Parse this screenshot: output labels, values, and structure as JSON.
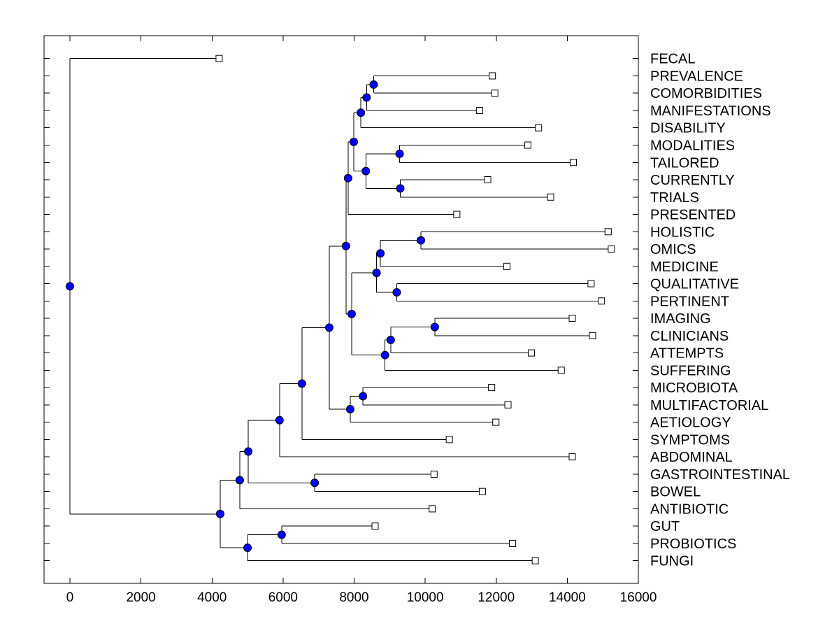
{
  "figure": {
    "background": "#ffffff",
    "text_color": "#000000",
    "line_color": "#000000",
    "internal_node_marker": {
      "shape": "circle",
      "fill": "#0000ff",
      "stroke": "#000000"
    },
    "leaf_marker": {
      "shape": "square",
      "fill": "#ffffff",
      "stroke": "#000000"
    }
  },
  "chart_data": {
    "type": "dendrogram",
    "subtype": "phylogenetic-tree",
    "orientation": "left-to-right",
    "title": "",
    "xlabel": "",
    "ylabel": "",
    "grid": false,
    "legend": null,
    "x_axis": {
      "min": 0,
      "max": 16000,
      "tick_interval": 2000,
      "tick_labels": [
        "0",
        "2000",
        "4000",
        "6000",
        "8000",
        "10000",
        "12000",
        "14000",
        "16000"
      ]
    },
    "leaf_labels_in_order": [
      "FECAL",
      "PREVALENCE",
      "COMORBIDITIES",
      "MANIFESTATIONS",
      "DISABILITY",
      "MODALITIES",
      "TAILORED",
      "CURRENTLY",
      "TRIALS",
      "PRESENTED",
      "HOLISTIC",
      "OMICS",
      "MEDICINE",
      "QUALITATIVE",
      "PERTINENT",
      "IMAGING",
      "CLINICIANS",
      "ATTEMPTS",
      "SUFFERING",
      "MICROBIOTA",
      "MULTIFACTORIAL",
      "AETIOLOGY",
      "SYMPTOMS",
      "ABDOMINAL",
      "GASTROINTESTINAL",
      "BOWEL",
      "ANTIBIOTIC",
      "GUT",
      "PROBIOTICS",
      "FUNGI"
    ],
    "tree": {
      "dist": 0,
      "children": [
        {
          "label": "FECAL",
          "dist": 4200
        },
        {
          "dist": 4230,
          "children": [
            {
              "dist": 4780,
              "children": [
                {
                  "dist": 5020,
                  "children": [
                    {
                      "dist": 5900,
                      "children": [
                        {
                          "dist": 6530,
                          "children": [
                            {
                              "dist": 7300,
                              "children": [
                                {
                                  "dist": 7770,
                                  "children": [
                                    {
                                      "dist": 7830,
                                      "children": [
                                        {
                                          "dist": 7990,
                                          "children": [
                                            {
                                              "dist": 8190,
                                              "children": [
                                                {
                                                  "dist": 8350,
                                                  "children": [
                                                    {
                                                      "dist": 8550,
                                                      "children": [
                                                        {
                                                          "label": "PREVALENCE",
                                                          "dist": 11890
                                                        },
                                                        {
                                                          "label": "COMORBIDITIES",
                                                          "dist": 11960
                                                        }
                                                      ]
                                                    },
                                                    {
                                                      "label": "MANIFESTATIONS",
                                                      "dist": 11530
                                                    }
                                                  ]
                                                },
                                                {
                                                  "label": "DISABILITY",
                                                  "dist": 13190
                                                }
                                              ]
                                            },
                                            {
                                              "dist": 8330,
                                              "children": [
                                                {
                                                  "dist": 9280,
                                                  "children": [
                                                    {
                                                      "label": "MODALITIES",
                                                      "dist": 12890
                                                    },
                                                    {
                                                      "label": "TAILORED",
                                                      "dist": 14170
                                                    }
                                                  ]
                                                },
                                                {
                                                  "dist": 9300,
                                                  "children": [
                                                    {
                                                      "label": "CURRENTLY",
                                                      "dist": 11760
                                                    },
                                                    {
                                                      "label": "TRIALS",
                                                      "dist": 13530
                                                    }
                                                  ]
                                                }
                                              ]
                                            }
                                          ]
                                        },
                                        {
                                          "label": "PRESENTED",
                                          "dist": 10890
                                        }
                                      ]
                                    },
                                    {
                                      "dist": 7930,
                                      "children": [
                                        {
                                          "dist": 8630,
                                          "children": [
                                            {
                                              "dist": 8740,
                                              "children": [
                                                {
                                                  "dist": 9880,
                                                  "children": [
                                                    {
                                                      "label": "HOLISTIC",
                                                      "dist": 15150
                                                    },
                                                    {
                                                      "label": "OMICS",
                                                      "dist": 15240
                                                    }
                                                  ]
                                                },
                                                {
                                                  "label": "MEDICINE",
                                                  "dist": 12300
                                                }
                                              ]
                                            },
                                            {
                                              "dist": 9200,
                                              "children": [
                                                {
                                                  "label": "QUALITATIVE",
                                                  "dist": 14670
                                                },
                                                {
                                                  "label": "PERTINENT",
                                                  "dist": 14960
                                                }
                                              ]
                                            }
                                          ]
                                        },
                                        {
                                          "dist": 8870,
                                          "children": [
                                            {
                                              "dist": 9030,
                                              "children": [
                                                {
                                                  "dist": 10270,
                                                  "children": [
                                                    {
                                                      "label": "IMAGING",
                                                      "dist": 14140
                                                    },
                                                    {
                                                      "label": "CLINICIANS",
                                                      "dist": 14710
                                                    }
                                                  ]
                                                },
                                                {
                                                  "label": "ATTEMPTS",
                                                  "dist": 12990
                                                }
                                              ]
                                            },
                                            {
                                              "label": "SUFFERING",
                                              "dist": 13830
                                            }
                                          ]
                                        }
                                      ]
                                    }
                                  ]
                                },
                                {
                                  "dist": 7890,
                                  "children": [
                                    {
                                      "dist": 8250,
                                      "children": [
                                        {
                                          "label": "MICROBIOTA",
                                          "dist": 11870
                                        },
                                        {
                                          "label": "MULTIFACTORIAL",
                                          "dist": 12330
                                        }
                                      ]
                                    },
                                    {
                                      "label": "AETIOLOGY",
                                      "dist": 11990
                                    }
                                  ]
                                }
                              ]
                            },
                            {
                              "label": "SYMPTOMS",
                              "dist": 10680
                            }
                          ]
                        },
                        {
                          "label": "ABDOMINAL",
                          "dist": 14140
                        }
                      ]
                    },
                    {
                      "dist": 6890,
                      "children": [
                        {
                          "label": "GASTROINTESTINAL",
                          "dist": 10250
                        },
                        {
                          "label": "BOWEL",
                          "dist": 11610
                        }
                      ]
                    }
                  ]
                },
                {
                  "label": "ANTIBIOTIC",
                  "dist": 10200
                }
              ]
            },
            {
              "dist": 5000,
              "children": [
                {
                  "dist": 5960,
                  "children": [
                    {
                      "label": "GUT",
                      "dist": 8590
                    },
                    {
                      "label": "PROBIOTICS",
                      "dist": 12460
                    }
                  ]
                },
                {
                  "label": "FUNGI",
                  "dist": 13100
                }
              ]
            }
          ]
        }
      ]
    }
  }
}
